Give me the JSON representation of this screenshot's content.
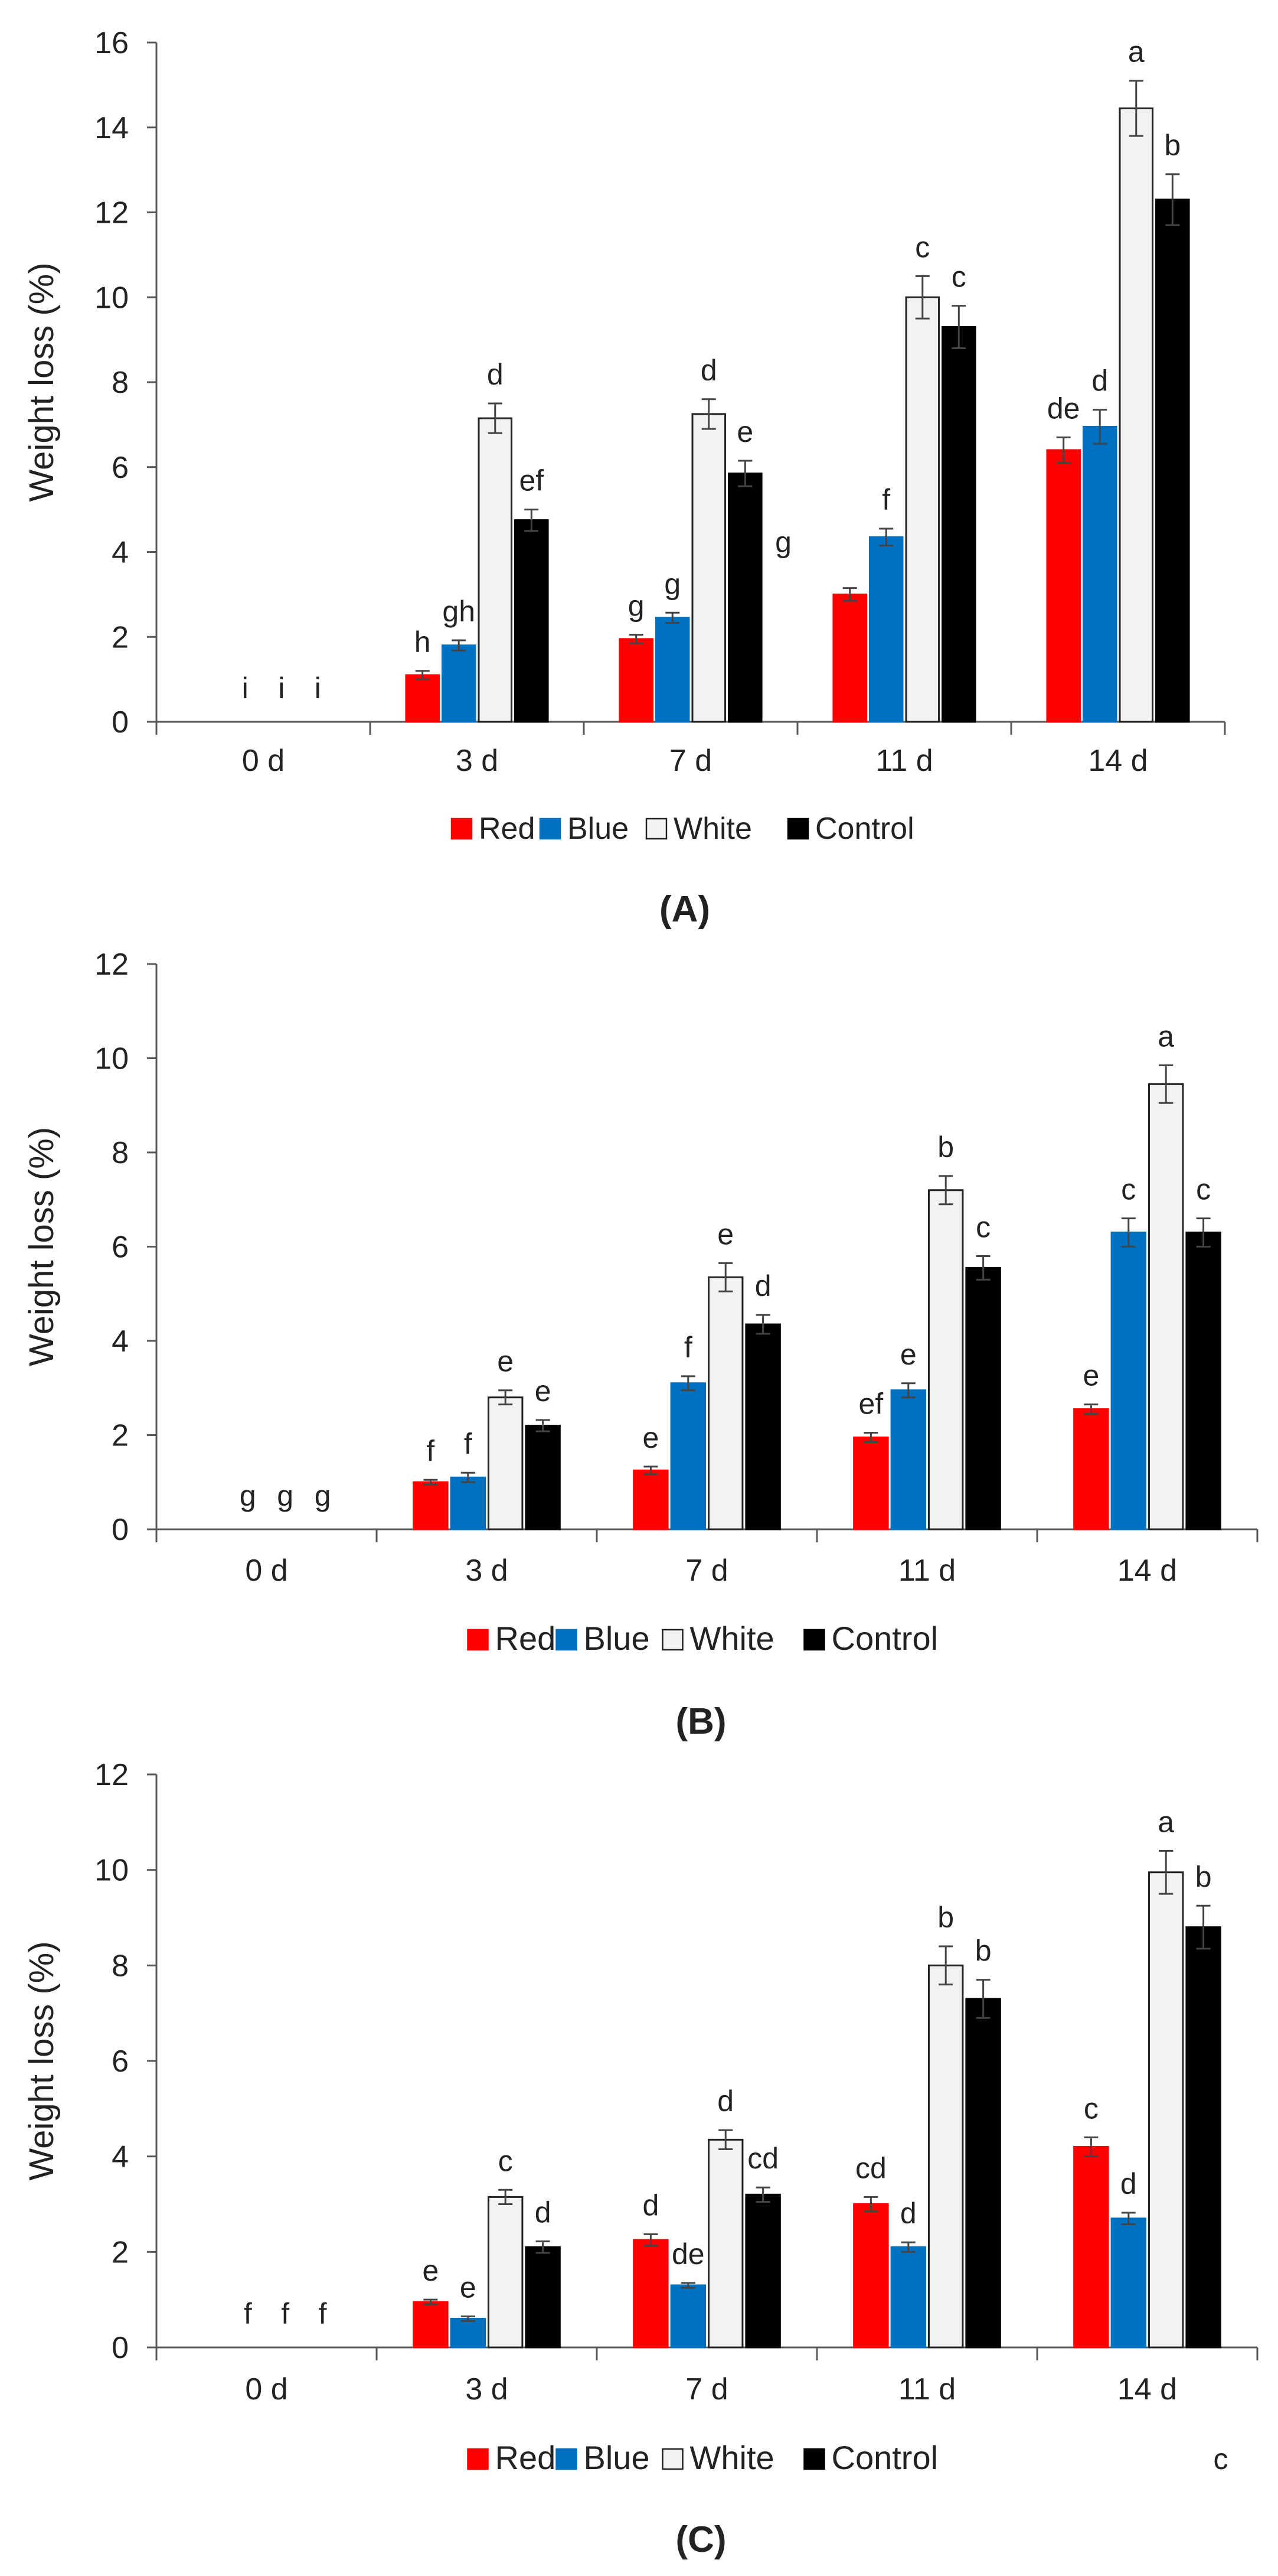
{
  "figure": {
    "stray_label": "c"
  },
  "chart_data": [
    {
      "panel_label": "(A)",
      "type": "bar",
      "title": "",
      "xlabel": "",
      "ylabel": "Weight loss (%)",
      "ylim": [
        0,
        16
      ],
      "yticks": [
        0,
        2,
        4,
        6,
        8,
        10,
        12,
        14,
        16
      ],
      "categories": [
        "0 d",
        "3 d",
        "7 d",
        "11 d",
        "14 d"
      ],
      "font": "sans",
      "legend_position": "bottom-center",
      "series": [
        {
          "name": "Red",
          "color": "#ff0000",
          "values": [
            0,
            1.1,
            1.95,
            3.0,
            6.4
          ],
          "errors": [
            0,
            0.1,
            0.1,
            0.15,
            0.3
          ],
          "letters": [
            "",
            "h",
            "g",
            "",
            "de"
          ]
        },
        {
          "name": "Blue",
          "color": "#0070c0",
          "values": [
            0,
            1.8,
            2.45,
            4.35,
            6.95
          ],
          "errors": [
            0,
            0.12,
            0.12,
            0.2,
            0.4
          ],
          "letters": [
            "i",
            "gh",
            "g",
            "f",
            "d"
          ]
        },
        {
          "name": "White",
          "color": "#f2f2f2",
          "values": [
            0,
            7.15,
            7.25,
            10.0,
            14.45
          ],
          "errors": [
            0,
            0.35,
            0.35,
            0.5,
            0.65
          ],
          "letters": [
            "i",
            "d",
            "d",
            "c",
            "a"
          ]
        },
        {
          "name": "Control",
          "color": "#000000",
          "values": [
            0,
            4.75,
            5.85,
            9.3,
            12.3
          ],
          "errors": [
            0,
            0.25,
            0.3,
            0.5,
            0.6
          ],
          "letters": [
            "i",
            "ef",
            "e",
            "c",
            "b"
          ]
        }
      ],
      "extra_annotations": [
        {
          "category": "7 d",
          "text": "g"
        }
      ]
    },
    {
      "panel_label": "(B)",
      "type": "bar",
      "title": "",
      "xlabel": "",
      "ylabel": "Weight loss (%)",
      "ylim": [
        0,
        12
      ],
      "yticks": [
        0,
        2,
        4,
        6,
        8,
        10,
        12
      ],
      "categories": [
        "0 d",
        "3 d",
        "7 d",
        "11 d",
        "14 d"
      ],
      "font": "serif",
      "legend_position": "bottom-center",
      "series": [
        {
          "name": "Red",
          "color": "#ff0000",
          "values": [
            0,
            1.0,
            1.25,
            1.95,
            2.55
          ],
          "errors": [
            0,
            0.05,
            0.08,
            0.1,
            0.1
          ],
          "letters": [
            "",
            "f",
            "e",
            "ef",
            "e"
          ]
        },
        {
          "name": "Blue",
          "color": "#0070c0",
          "values": [
            0,
            1.1,
            3.1,
            2.95,
            6.3
          ],
          "errors": [
            0,
            0.1,
            0.15,
            0.15,
            0.3
          ],
          "letters": [
            "g",
            "f",
            "f",
            "e",
            "c"
          ]
        },
        {
          "name": "White",
          "color": "#f2f2f2",
          "values": [
            0,
            2.8,
            5.35,
            7.2,
            9.45
          ],
          "errors": [
            0,
            0.15,
            0.3,
            0.3,
            0.4
          ],
          "letters": [
            "g",
            "e",
            "e",
            "b",
            "a"
          ]
        },
        {
          "name": "Control",
          "color": "#000000",
          "values": [
            0,
            2.2,
            4.35,
            5.55,
            6.3
          ],
          "errors": [
            0,
            0.12,
            0.2,
            0.25,
            0.3
          ],
          "letters": [
            "g",
            "e",
            "d",
            "c",
            "c"
          ]
        }
      ],
      "extra_annotations": []
    },
    {
      "panel_label": "(C)",
      "type": "bar",
      "title": "",
      "xlabel": "",
      "ylabel": "Weight loss (%)",
      "ylim": [
        0,
        12
      ],
      "yticks": [
        0,
        2,
        4,
        6,
        8,
        10,
        12
      ],
      "categories": [
        "0 d",
        "3 d",
        "7 d",
        "11 d",
        "14 d"
      ],
      "font": "mixed",
      "legend_position": "bottom-center",
      "series": [
        {
          "name": "Red",
          "color": "#ff0000",
          "values": [
            0,
            0.95,
            2.25,
            3.0,
            4.2
          ],
          "errors": [
            0,
            0.05,
            0.12,
            0.15,
            0.2
          ],
          "letters": [
            "",
            "e",
            "d",
            "cd",
            "c"
          ]
        },
        {
          "name": "Blue",
          "color": "#0070c0",
          "values": [
            0,
            0.6,
            1.3,
            2.1,
            2.7
          ],
          "errors": [
            0,
            0.05,
            0.05,
            0.1,
            0.12
          ],
          "letters": [
            "f",
            "e",
            "de",
            "d",
            "d"
          ]
        },
        {
          "name": "White",
          "color": "#f2f2f2",
          "values": [
            0,
            3.15,
            4.35,
            8.0,
            9.95
          ],
          "errors": [
            0,
            0.15,
            0.2,
            0.4,
            0.45
          ],
          "letters": [
            "f",
            "c",
            "d",
            "b",
            "a"
          ]
        },
        {
          "name": "Control",
          "color": "#000000",
          "values": [
            0,
            2.1,
            3.2,
            7.3,
            8.8
          ],
          "errors": [
            0,
            0.12,
            0.15,
            0.4,
            0.45
          ],
          "letters": [
            "f",
            "d",
            "cd",
            "b",
            "b"
          ]
        }
      ],
      "extra_annotations": []
    }
  ]
}
